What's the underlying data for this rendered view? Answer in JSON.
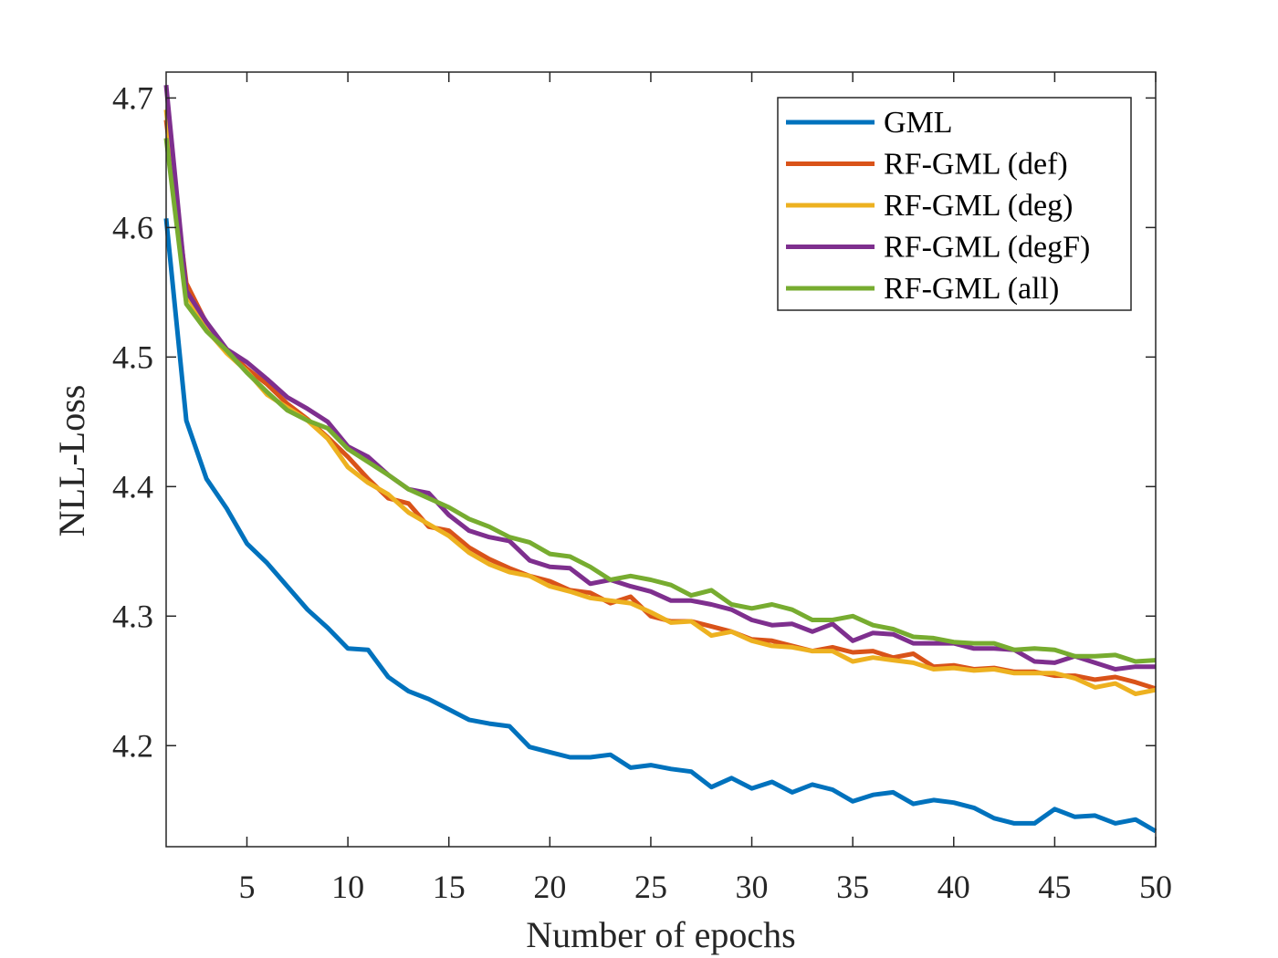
{
  "chart_data": {
    "type": "line",
    "title": "",
    "xlabel": "Number of epochs",
    "ylabel": "NLL-Loss",
    "xlim": [
      1,
      50
    ],
    "ylim": [
      4.122,
      4.72
    ],
    "xticks": [
      5,
      10,
      15,
      20,
      25,
      30,
      35,
      40,
      45,
      50
    ],
    "yticks": [
      4.2,
      4.3,
      4.4,
      4.5,
      4.6,
      4.7
    ],
    "ytick_labels": [
      "4.2",
      "4.3",
      "4.4",
      "4.5",
      "4.6",
      "4.7"
    ],
    "grid": false,
    "legend_position": "top-right",
    "x": [
      1,
      2,
      3,
      4,
      5,
      6,
      7,
      8,
      9,
      10,
      11,
      12,
      13,
      14,
      15,
      16,
      17,
      18,
      19,
      20,
      21,
      22,
      23,
      24,
      25,
      26,
      27,
      28,
      29,
      30,
      31,
      32,
      33,
      34,
      35,
      36,
      37,
      38,
      39,
      40,
      41,
      42,
      43,
      44,
      45,
      46,
      47,
      48,
      49,
      50
    ],
    "series": [
      {
        "name": "GML",
        "color": "#0072BD",
        "values": [
          4.607,
          4.451,
          4.406,
          4.383,
          4.356,
          4.341,
          4.323,
          4.305,
          4.291,
          4.275,
          4.274,
          4.253,
          4.242,
          4.236,
          4.228,
          4.22,
          4.217,
          4.215,
          4.199,
          4.195,
          4.191,
          4.191,
          4.193,
          4.183,
          4.185,
          4.182,
          4.18,
          4.168,
          4.175,
          4.167,
          4.172,
          4.164,
          4.17,
          4.166,
          4.157,
          4.162,
          4.164,
          4.155,
          4.158,
          4.156,
          4.152,
          4.144,
          4.14,
          4.14,
          4.151,
          4.145,
          4.146,
          4.14,
          4.143,
          4.134
        ]
      },
      {
        "name": "RF-GML (def)",
        "color": "#D95319",
        "values": [
          4.683,
          4.557,
          4.526,
          4.505,
          4.491,
          4.479,
          4.464,
          4.452,
          4.438,
          4.423,
          4.406,
          4.391,
          4.387,
          4.369,
          4.366,
          4.353,
          4.344,
          4.337,
          4.331,
          4.327,
          4.32,
          4.318,
          4.31,
          4.315,
          4.3,
          4.296,
          4.296,
          4.292,
          4.288,
          4.282,
          4.281,
          4.277,
          4.273,
          4.276,
          4.272,
          4.273,
          4.268,
          4.271,
          4.261,
          4.262,
          4.259,
          4.26,
          4.257,
          4.257,
          4.254,
          4.254,
          4.251,
          4.253,
          4.249,
          4.244
        ]
      },
      {
        "name": "RF-GML (deg)",
        "color": "#EDB120",
        "values": [
          4.691,
          4.549,
          4.521,
          4.503,
          4.489,
          4.471,
          4.461,
          4.451,
          4.437,
          4.415,
          4.403,
          4.394,
          4.38,
          4.371,
          4.362,
          4.349,
          4.34,
          4.334,
          4.331,
          4.323,
          4.319,
          4.314,
          4.312,
          4.31,
          4.303,
          4.295,
          4.296,
          4.285,
          4.288,
          4.281,
          4.277,
          4.276,
          4.273,
          4.273,
          4.265,
          4.268,
          4.266,
          4.264,
          4.259,
          4.26,
          4.258,
          4.259,
          4.256,
          4.256,
          4.256,
          4.252,
          4.245,
          4.248,
          4.24,
          4.243
        ]
      },
      {
        "name": "RF-GML (degF)",
        "color": "#7E2F8E",
        "values": [
          4.71,
          4.551,
          4.527,
          4.506,
          4.496,
          4.483,
          4.469,
          4.46,
          4.45,
          4.431,
          4.423,
          4.409,
          4.398,
          4.395,
          4.378,
          4.366,
          4.361,
          4.358,
          4.343,
          4.338,
          4.337,
          4.325,
          4.328,
          4.323,
          4.319,
          4.312,
          4.312,
          4.309,
          4.305,
          4.297,
          4.293,
          4.294,
          4.288,
          4.294,
          4.281,
          4.287,
          4.286,
          4.279,
          4.279,
          4.279,
          4.275,
          4.275,
          4.274,
          4.265,
          4.264,
          4.269,
          4.264,
          4.259,
          4.261,
          4.261
        ]
      },
      {
        "name": "RF-GML (all)",
        "color": "#77AC30",
        "values": [
          4.669,
          4.541,
          4.52,
          4.505,
          4.488,
          4.473,
          4.459,
          4.451,
          4.445,
          4.429,
          4.419,
          4.409,
          4.398,
          4.391,
          4.384,
          4.375,
          4.369,
          4.361,
          4.357,
          4.348,
          4.346,
          4.338,
          4.328,
          4.331,
          4.328,
          4.324,
          4.316,
          4.32,
          4.309,
          4.306,
          4.309,
          4.305,
          4.297,
          4.297,
          4.3,
          4.293,
          4.29,
          4.284,
          4.283,
          4.28,
          4.279,
          4.279,
          4.274,
          4.275,
          4.274,
          4.269,
          4.269,
          4.27,
          4.265,
          4.266
        ]
      }
    ]
  }
}
